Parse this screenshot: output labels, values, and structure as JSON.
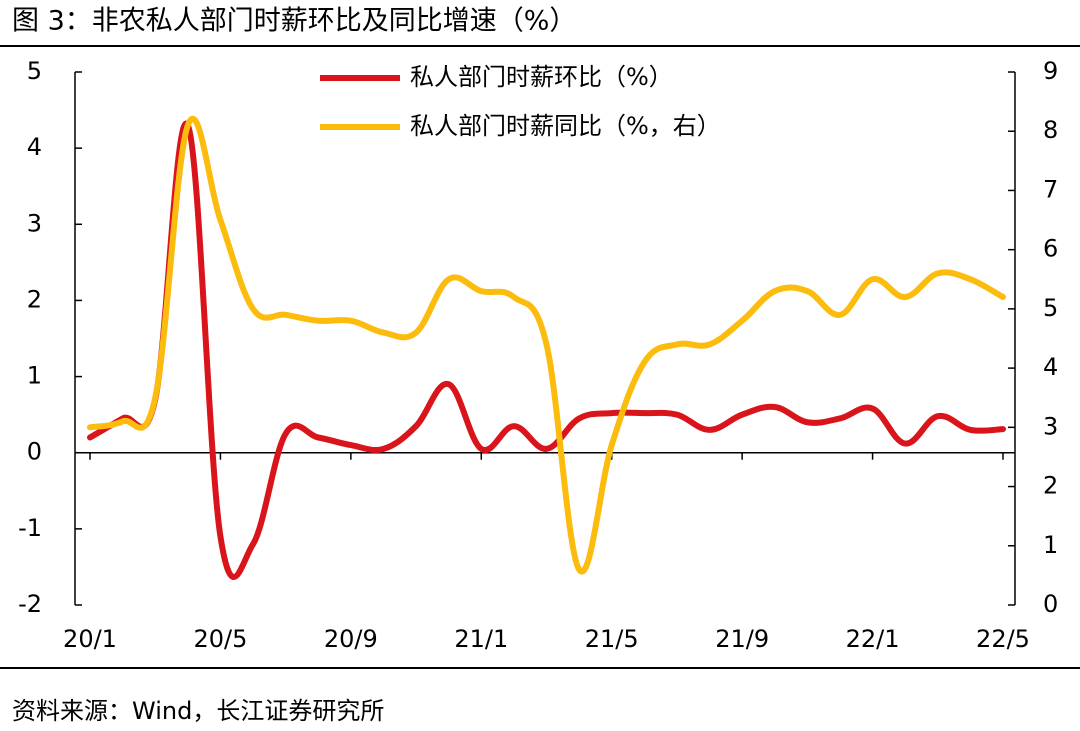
{
  "chart_data": {
    "type": "line",
    "title": "图 3：非农私人部门时薪环比及同比增速（%）",
    "source": "资料来源：Wind，长江证券研究所",
    "categories": [
      "20/1",
      null,
      null,
      null,
      "20/5",
      null,
      null,
      null,
      "20/9",
      null,
      null,
      null,
      "21/1",
      null,
      null,
      null,
      "21/5",
      null,
      null,
      null,
      "21/9",
      null,
      null,
      null,
      "22/1",
      null,
      null,
      null,
      "22/5"
    ],
    "series": [
      {
        "name": "私人部门时薪环比（%）",
        "color": "#d9141b",
        "values": [
          0.2,
          0.45,
          0.7,
          4.3,
          -1.1,
          -1.2,
          0.25,
          0.2,
          0.1,
          0.05,
          0.35,
          0.9,
          0.05,
          0.35,
          0.05,
          0.45,
          0.52,
          0.52,
          0.5,
          0.3,
          0.5,
          0.6,
          0.4,
          0.45,
          0.58,
          0.12,
          0.48,
          0.3,
          0.31
        ]
      },
      {
        "name": "私人部门时薪同比（%，右）",
        "color": "#fbbc0e",
        "axis": "y2",
        "values": [
          3.0,
          3.1,
          3.5,
          8.1,
          6.5,
          5.0,
          4.9,
          4.8,
          4.8,
          4.6,
          4.6,
          5.5,
          5.3,
          5.2,
          4.4,
          0.6,
          2.7,
          4.1,
          4.4,
          4.4,
          4.8,
          5.3,
          5.3,
          4.9,
          5.5,
          5.2,
          5.6,
          5.5,
          5.2
        ]
      }
    ],
    "ylim": [
      -2,
      5
    ],
    "yticks": [
      -2,
      -1,
      0,
      1,
      2,
      3,
      4,
      5
    ],
    "y2lim": [
      0,
      9
    ],
    "y2ticks": [
      0,
      1,
      2,
      3,
      4,
      5,
      6,
      7,
      8,
      9
    ]
  }
}
